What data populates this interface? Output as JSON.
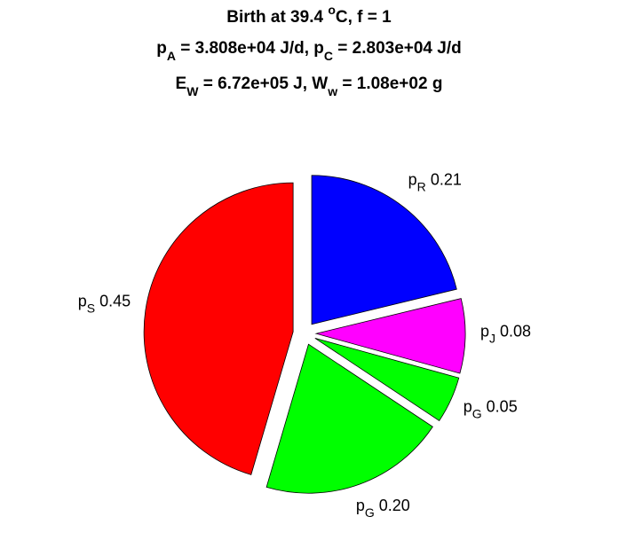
{
  "chart_data": {
    "type": "pie",
    "title": [
      [
        {
          "t": "Birth at 39.4 "
        },
        {
          "t": "o",
          "s": "sup"
        },
        {
          "t": "C, f = 1"
        }
      ],
      [
        {
          "t": "p"
        },
        {
          "t": "A",
          "s": "sub"
        },
        {
          "t": " = 3.808e+04 J/d, p"
        },
        {
          "t": "C",
          "s": "sub"
        },
        {
          "t": " = 2.803e+04 J/d"
        }
      ],
      [
        {
          "t": "E"
        },
        {
          "t": "W",
          "s": "sub"
        },
        {
          "t": " = 6.72e+05 J, W"
        },
        {
          "t": "w",
          "s": "sub"
        },
        {
          "t": " = 1.08e+02 g"
        }
      ]
    ],
    "categories": [
      {
        "base": "p",
        "sub": "R"
      },
      {
        "base": "p",
        "sub": "J"
      },
      {
        "base": "p",
        "sub": "G"
      },
      {
        "base": "p",
        "sub": "G"
      },
      {
        "base": "p",
        "sub": "S"
      }
    ],
    "values": [
      0.21,
      0.08,
      0.05,
      0.2,
      0.45
    ],
    "value_labels": [
      "0.21",
      "0.08",
      "0.05",
      "0.20",
      "0.45"
    ],
    "colors": [
      "#0000ff",
      "#ff00ff",
      "#00ff00",
      "#00ff00",
      "#ff0000"
    ]
  }
}
